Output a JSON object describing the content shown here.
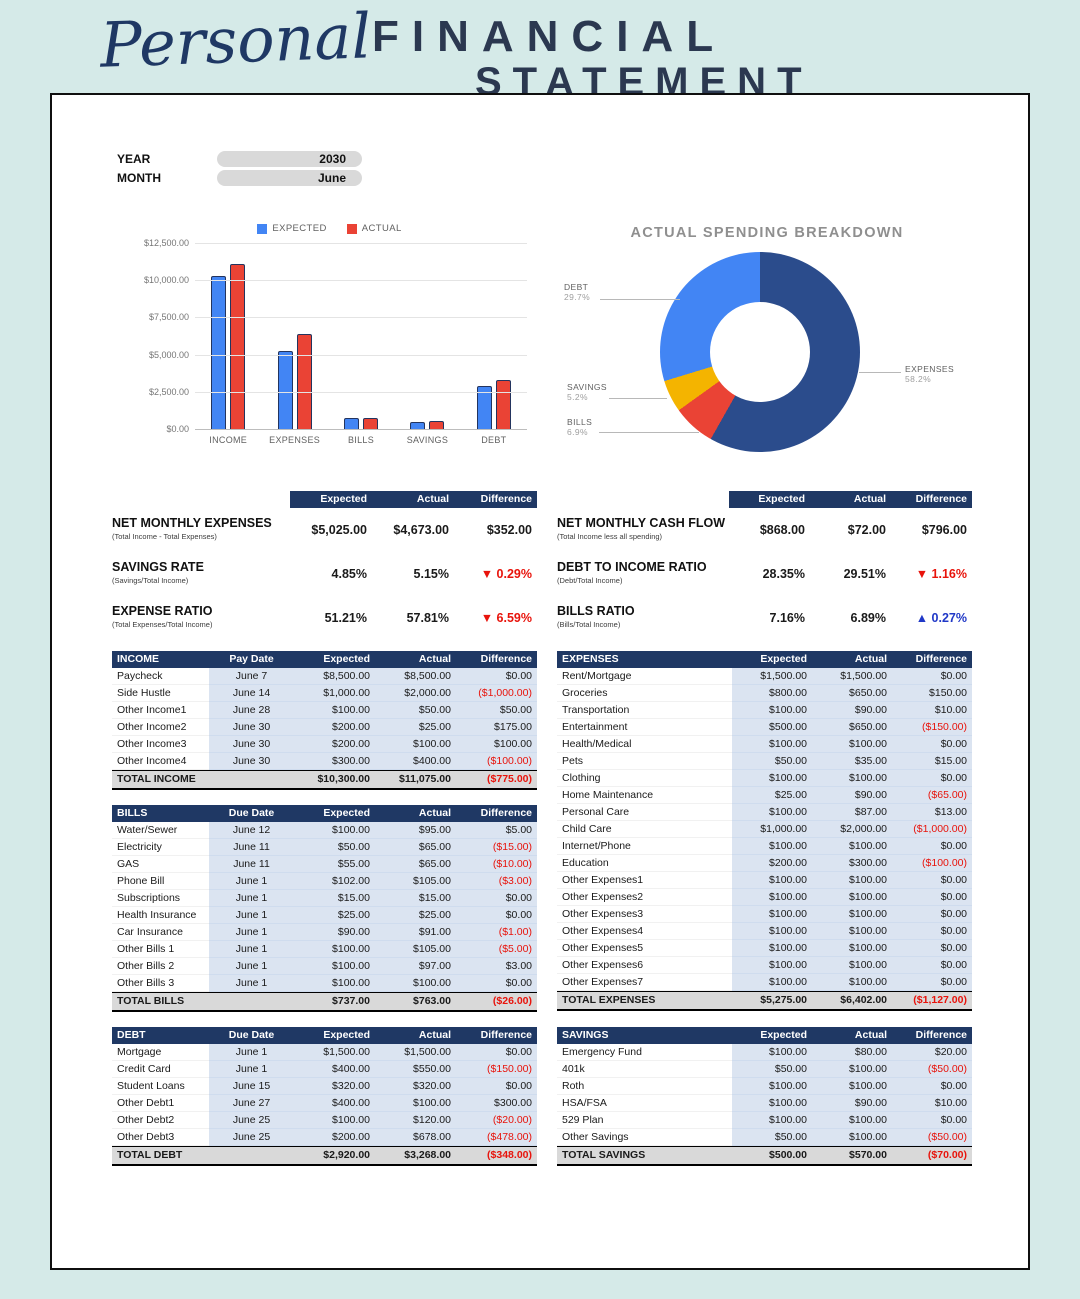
{
  "header": {
    "script_title": "Personal",
    "title_line1": "FINANCIAL",
    "title_line2": "STATEMENT"
  },
  "period": {
    "year_label": "YEAR",
    "year_value": "2030",
    "month_label": "MONTH",
    "month_value": "June"
  },
  "chart_data": [
    {
      "type": "bar",
      "title": "",
      "legend_position": "top",
      "categories": [
        "INCOME",
        "EXPENSES",
        "BILLS",
        "SAVINGS",
        "DEBT"
      ],
      "series": [
        {
          "name": "EXPECTED",
          "color": "#4285f4",
          "values": [
            10300,
            5275,
            737,
            500,
            2920
          ]
        },
        {
          "name": "ACTUAL",
          "color": "#ea4335",
          "values": [
            11075,
            6402,
            763,
            570,
            3268
          ]
        }
      ],
      "ylim": [
        0,
        12500
      ],
      "yticks": [
        "$12,500.00",
        "$10,000.00",
        "$7,500.00",
        "$5,000.00",
        "$2,500.00",
        "$0.00"
      ],
      "grid": true
    },
    {
      "type": "pie",
      "donut": true,
      "title": "ACTUAL SPENDING BREAKDOWN",
      "slices": [
        {
          "label": "EXPENSES",
          "pct": 58.2,
          "color": "#2b4c8c"
        },
        {
          "label": "BILLS",
          "pct": 6.9,
          "color": "#ea4335"
        },
        {
          "label": "SAVINGS",
          "pct": 5.2,
          "color": "#f4b400"
        },
        {
          "label": "DEBT",
          "pct": 29.7,
          "color": "#4285f4"
        }
      ]
    }
  ],
  "summaries": {
    "left": {
      "columns": [
        "Expected",
        "Actual",
        "Difference"
      ],
      "rows": [
        {
          "label": "NET MONTHLY EXPENSES",
          "sub": "(Total Income - Total Expenses)",
          "expected": "$5,025.00",
          "actual": "$4,673.00",
          "difference": "$352.00",
          "diff_style": "normal"
        },
        {
          "label": "SAVINGS RATE",
          "sub": "(Savings/Total Income)",
          "expected": "4.85%",
          "actual": "5.15%",
          "difference": "▼ 0.29%",
          "diff_style": "down"
        },
        {
          "label": "EXPENSE RATIO",
          "sub": "(Total Expenses/Total Income)",
          "expected": "51.21%",
          "actual": "57.81%",
          "difference": "▼ 6.59%",
          "diff_style": "down"
        }
      ]
    },
    "right": {
      "columns": [
        "Expected",
        "Actual",
        "Difference"
      ],
      "rows": [
        {
          "label": "NET MONTHLY CASH FLOW",
          "sub": "(Total Income less all spending)",
          "expected": "$868.00",
          "actual": "$72.00",
          "difference": "$796.00",
          "diff_style": "normal"
        },
        {
          "label": "DEBT TO INCOME RATIO",
          "sub": "(Debt/Total Income)",
          "expected": "28.35%",
          "actual": "29.51%",
          "difference": "▼ 1.16%",
          "diff_style": "down"
        },
        {
          "label": "BILLS RATIO",
          "sub": "(Bills/Total Income)",
          "expected": "7.16%",
          "actual": "6.89%",
          "difference": "▲ 0.27%",
          "diff_style": "up"
        }
      ]
    }
  },
  "tables": {
    "income": {
      "columns": [
        "INCOME",
        "Pay Date",
        "Expected",
        "Actual",
        "Difference"
      ],
      "rows": [
        [
          "Paycheck",
          "June 7",
          "$8,500.00",
          "$8,500.00",
          "$0.00"
        ],
        [
          "Side Hustle",
          "June 14",
          "$1,000.00",
          "$2,000.00",
          "($1,000.00)"
        ],
        [
          "Other Income1",
          "June 28",
          "$100.00",
          "$50.00",
          "$50.00"
        ],
        [
          "Other Income2",
          "June 30",
          "$200.00",
          "$25.00",
          "$175.00"
        ],
        [
          "Other Income3",
          "June 30",
          "$200.00",
          "$100.00",
          "$100.00"
        ],
        [
          "Other Income4",
          "June 30",
          "$300.00",
          "$400.00",
          "($100.00)"
        ]
      ],
      "total": [
        "TOTAL INCOME",
        "",
        "$10,300.00",
        "$11,075.00",
        "($775.00)"
      ]
    },
    "bills": {
      "columns": [
        "BILLS",
        "Due Date",
        "Expected",
        "Actual",
        "Difference"
      ],
      "rows": [
        [
          "Water/Sewer",
          "June 12",
          "$100.00",
          "$95.00",
          "$5.00"
        ],
        [
          "Electricity",
          "June 11",
          "$50.00",
          "$65.00",
          "($15.00)"
        ],
        [
          "GAS",
          "June 11",
          "$55.00",
          "$65.00",
          "($10.00)"
        ],
        [
          "Phone Bill",
          "June 1",
          "$102.00",
          "$105.00",
          "($3.00)"
        ],
        [
          "Subscriptions",
          "June 1",
          "$15.00",
          "$15.00",
          "$0.00"
        ],
        [
          "Health Insurance",
          "June 1",
          "$25.00",
          "$25.00",
          "$0.00"
        ],
        [
          "Car Insurance",
          "June 1",
          "$90.00",
          "$91.00",
          "($1.00)"
        ],
        [
          "Other Bills 1",
          "June 1",
          "$100.00",
          "$105.00",
          "($5.00)"
        ],
        [
          "Other Bills 2",
          "June 1",
          "$100.00",
          "$97.00",
          "$3.00"
        ],
        [
          "Other Bills 3",
          "June 1",
          "$100.00",
          "$100.00",
          "$0.00"
        ]
      ],
      "total": [
        "TOTAL BILLS",
        "",
        "$737.00",
        "$763.00",
        "($26.00)"
      ]
    },
    "debt": {
      "columns": [
        "DEBT",
        "Due Date",
        "Expected",
        "Actual",
        "Difference"
      ],
      "rows": [
        [
          "Mortgage",
          "June 1",
          "$1,500.00",
          "$1,500.00",
          "$0.00"
        ],
        [
          "Credit Card",
          "June 1",
          "$400.00",
          "$550.00",
          "($150.00)"
        ],
        [
          "Student Loans",
          "June 15",
          "$320.00",
          "$320.00",
          "$0.00"
        ],
        [
          "Other Debt1",
          "June 27",
          "$400.00",
          "$100.00",
          "$300.00"
        ],
        [
          "Other Debt2",
          "June 25",
          "$100.00",
          "$120.00",
          "($20.00)"
        ],
        [
          "Other Debt3",
          "June 25",
          "$200.00",
          "$678.00",
          "($478.00)"
        ]
      ],
      "total": [
        "TOTAL DEBT",
        "",
        "$2,920.00",
        "$3,268.00",
        "($348.00)"
      ]
    },
    "expenses": {
      "columns": [
        "EXPENSES",
        "Expected",
        "Actual",
        "Difference"
      ],
      "rows": [
        [
          "Rent/Mortgage",
          "$1,500.00",
          "$1,500.00",
          "$0.00"
        ],
        [
          "Groceries",
          "$800.00",
          "$650.00",
          "$150.00"
        ],
        [
          "Transportation",
          "$100.00",
          "$90.00",
          "$10.00"
        ],
        [
          "Entertainment",
          "$500.00",
          "$650.00",
          "($150.00)"
        ],
        [
          "Health/Medical",
          "$100.00",
          "$100.00",
          "$0.00"
        ],
        [
          "Pets",
          "$50.00",
          "$35.00",
          "$15.00"
        ],
        [
          "Clothing",
          "$100.00",
          "$100.00",
          "$0.00"
        ],
        [
          "Home Maintenance",
          "$25.00",
          "$90.00",
          "($65.00)"
        ],
        [
          "Personal Care",
          "$100.00",
          "$87.00",
          "$13.00"
        ],
        [
          "Child Care",
          "$1,000.00",
          "$2,000.00",
          "($1,000.00)"
        ],
        [
          "Internet/Phone",
          "$100.00",
          "$100.00",
          "$0.00"
        ],
        [
          "Education",
          "$200.00",
          "$300.00",
          "($100.00)"
        ],
        [
          "Other Expenses1",
          "$100.00",
          "$100.00",
          "$0.00"
        ],
        [
          "Other Expenses2",
          "$100.00",
          "$100.00",
          "$0.00"
        ],
        [
          "Other Expenses3",
          "$100.00",
          "$100.00",
          "$0.00"
        ],
        [
          "Other Expenses4",
          "$100.00",
          "$100.00",
          "$0.00"
        ],
        [
          "Other Expenses5",
          "$100.00",
          "$100.00",
          "$0.00"
        ],
        [
          "Other Expenses6",
          "$100.00",
          "$100.00",
          "$0.00"
        ],
        [
          "Other Expenses7",
          "$100.00",
          "$100.00",
          "$0.00"
        ]
      ],
      "total": [
        "TOTAL EXPENSES",
        "$5,275.00",
        "$6,402.00",
        "($1,127.00)"
      ]
    },
    "savings": {
      "columns": [
        "SAVINGS",
        "Expected",
        "Actual",
        "Difference"
      ],
      "rows": [
        [
          "Emergency Fund",
          "$100.00",
          "$80.00",
          "$20.00"
        ],
        [
          "401k",
          "$50.00",
          "$100.00",
          "($50.00)"
        ],
        [
          "Roth",
          "$100.00",
          "$100.00",
          "$0.00"
        ],
        [
          "HSA/FSA",
          "$100.00",
          "$90.00",
          "$10.00"
        ],
        [
          "529 Plan",
          "$100.00",
          "$100.00",
          "$0.00"
        ],
        [
          "Other Savings",
          "$50.00",
          "$100.00",
          "($50.00)"
        ]
      ],
      "total": [
        "TOTAL SAVINGS",
        "$500.00",
        "$570.00",
        "($70.00)"
      ]
    }
  },
  "colors": {
    "navy": "#1f3864",
    "mint_background": "#d5eae8",
    "row_blue": "#dbe4f1",
    "total_gray": "#d9d9d9",
    "negative_red": "#e8130b",
    "positive_blue": "#2038c7",
    "bar_expected": "#4285f4",
    "bar_actual": "#ea4335"
  }
}
